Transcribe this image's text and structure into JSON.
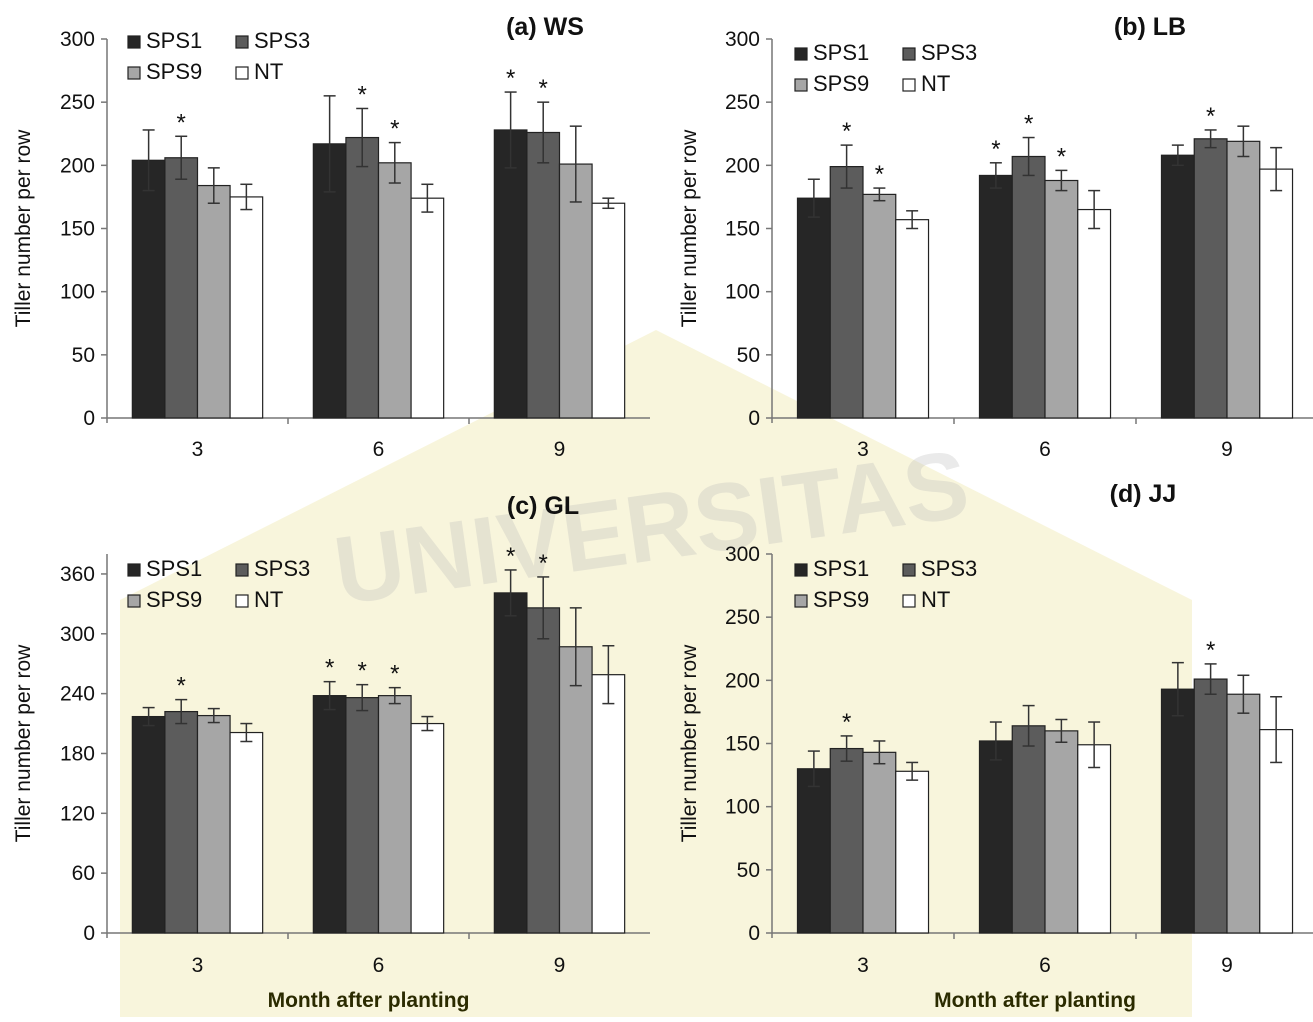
{
  "figure": {
    "x_axis_title": "Month after planting",
    "y_axis_title": "Tiller number per row",
    "watermark": "UNIVERSITAS"
  },
  "legend_labels": [
    "SPS1",
    "SPS3",
    "SPS9",
    "NT"
  ],
  "chart_data": [
    {
      "type": "bar",
      "title": "(a) WS",
      "xlabel": "",
      "ylabel": "Tiller number per row",
      "categories": [
        "3",
        "6",
        "9"
      ],
      "ylim": [
        0,
        300
      ],
      "yticks": [
        0,
        50,
        100,
        150,
        200,
        250,
        300
      ],
      "legend_position": "top-left",
      "series": [
        {
          "name": "SPS1",
          "color": "#262626",
          "values": [
            204,
            217,
            228
          ],
          "errors": [
            24,
            38,
            30
          ],
          "significant": [
            false,
            false,
            true
          ]
        },
        {
          "name": "SPS3",
          "color": "#5c5c5c",
          "values": [
            206,
            222,
            226
          ],
          "errors": [
            17,
            23,
            24
          ],
          "significant": [
            true,
            true,
            true
          ]
        },
        {
          "name": "SPS9",
          "color": "#a6a6a6",
          "values": [
            184,
            202,
            201
          ],
          "errors": [
            14,
            16,
            30
          ],
          "significant": [
            false,
            true,
            false
          ]
        },
        {
          "name": "NT",
          "color": "#ffffff",
          "values": [
            175,
            174,
            170
          ],
          "errors": [
            10,
            11,
            4
          ],
          "significant": [
            false,
            false,
            false
          ]
        }
      ]
    },
    {
      "type": "bar",
      "title": "(b) LB",
      "xlabel": "",
      "ylabel": "Tiller number per row",
      "categories": [
        "3",
        "6",
        "9"
      ],
      "ylim": [
        0,
        300
      ],
      "yticks": [
        0,
        50,
        100,
        150,
        200,
        250,
        300
      ],
      "legend_position": "top-left",
      "series": [
        {
          "name": "SPS1",
          "color": "#262626",
          "values": [
            174,
            192,
            208
          ],
          "errors": [
            15,
            10,
            8
          ],
          "significant": [
            false,
            true,
            false
          ]
        },
        {
          "name": "SPS3",
          "color": "#5c5c5c",
          "values": [
            199,
            207,
            221
          ],
          "errors": [
            17,
            15,
            7
          ],
          "significant": [
            true,
            true,
            true
          ]
        },
        {
          "name": "SPS9",
          "color": "#a6a6a6",
          "values": [
            177,
            188,
            219
          ],
          "errors": [
            5,
            8,
            12
          ],
          "significant": [
            true,
            true,
            false
          ]
        },
        {
          "name": "NT",
          "color": "#ffffff",
          "values": [
            157,
            165,
            197
          ],
          "errors": [
            7,
            15,
            17
          ],
          "significant": [
            false,
            false,
            false
          ]
        }
      ]
    },
    {
      "type": "bar",
      "title": "(c) GL",
      "xlabel": "Month after planting",
      "ylabel": "Tiller number per row",
      "categories": [
        "3",
        "6",
        "9"
      ],
      "ylim": [
        0,
        380
      ],
      "yticks": [
        0,
        60,
        120,
        180,
        240,
        300,
        360
      ],
      "legend_position": "top-left",
      "series": [
        {
          "name": "SPS1",
          "color": "#262626",
          "values": [
            217,
            238,
            341
          ],
          "errors": [
            9,
            14,
            23
          ],
          "significant": [
            false,
            true,
            true
          ]
        },
        {
          "name": "SPS3",
          "color": "#5c5c5c",
          "values": [
            222,
            236,
            326
          ],
          "errors": [
            12,
            13,
            31
          ],
          "significant": [
            true,
            true,
            true
          ]
        },
        {
          "name": "SPS9",
          "color": "#a6a6a6",
          "values": [
            218,
            238,
            287
          ],
          "errors": [
            7,
            8,
            39
          ],
          "significant": [
            false,
            true,
            false
          ]
        },
        {
          "name": "NT",
          "color": "#ffffff",
          "values": [
            201,
            210,
            259
          ],
          "errors": [
            9,
            7,
            29
          ],
          "significant": [
            false,
            false,
            false
          ]
        }
      ]
    },
    {
      "type": "bar",
      "title": "(d) JJ",
      "xlabel": "Month after planting",
      "ylabel": "Tiller number per row",
      "categories": [
        "3",
        "6",
        "9"
      ],
      "ylim": [
        0,
        300
      ],
      "yticks": [
        0,
        50,
        100,
        150,
        200,
        250,
        300
      ],
      "legend_position": "top-left",
      "series": [
        {
          "name": "SPS1",
          "color": "#262626",
          "values": [
            130,
            152,
            193
          ],
          "errors": [
            14,
            15,
            21
          ],
          "significant": [
            false,
            false,
            false
          ]
        },
        {
          "name": "SPS3",
          "color": "#5c5c5c",
          "values": [
            146,
            164,
            201
          ],
          "errors": [
            10,
            16,
            12
          ],
          "significant": [
            true,
            false,
            true
          ]
        },
        {
          "name": "SPS9",
          "color": "#a6a6a6",
          "values": [
            143,
            160,
            189
          ],
          "errors": [
            9,
            9,
            15
          ],
          "significant": [
            false,
            false,
            false
          ]
        },
        {
          "name": "NT",
          "color": "#ffffff",
          "values": [
            128,
            149,
            161
          ],
          "errors": [
            7,
            18,
            26
          ],
          "significant": [
            false,
            false,
            false
          ]
        }
      ]
    }
  ]
}
